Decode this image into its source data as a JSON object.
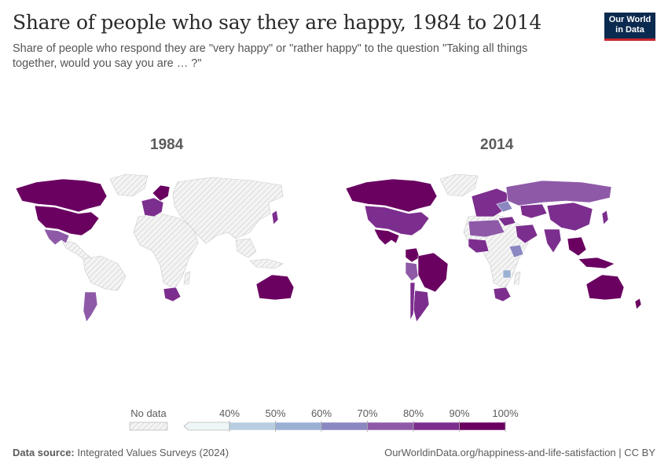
{
  "header": {
    "title": "Share of people who say they are happy, 1984 to 2014",
    "subtitle": "Share of people who respond they are \"very happy\" or \"rather happy\" to the question \"Taking all things together, would you say you are … ?\""
  },
  "logo": {
    "line1": "Our World",
    "line2": "in Data",
    "bg_color": "#0b2a4f",
    "accent_color": "#c8252c"
  },
  "chart_data": {
    "type": "choropleth",
    "title": "Share of people who say they are happy, 1984 to 2014",
    "maps": [
      {
        "year_label": "1984",
        "regions": [
          {
            "name": "Canada",
            "bin": "90-100%"
          },
          {
            "name": "United States",
            "bin": "90-100%"
          },
          {
            "name": "Mexico",
            "bin": "70-80%"
          },
          {
            "name": "Argentina",
            "bin": "70-80%"
          },
          {
            "name": "Western Europe",
            "bin": "80-90%"
          },
          {
            "name": "Nordics",
            "bin": "90-100%"
          },
          {
            "name": "Japan",
            "bin": "80-90%"
          },
          {
            "name": "South Africa",
            "bin": "80-90%"
          },
          {
            "name": "Australia",
            "bin": "90-100%"
          }
        ]
      },
      {
        "year_label": "2014",
        "regions": [
          {
            "name": "Canada",
            "bin": "90-100%"
          },
          {
            "name": "United States",
            "bin": "80-90%"
          },
          {
            "name": "Mexico",
            "bin": "90-100%"
          },
          {
            "name": "Colombia",
            "bin": "90-100%"
          },
          {
            "name": "Brazil",
            "bin": "90-100%"
          },
          {
            "name": "Peru",
            "bin": "70-80%"
          },
          {
            "name": "Argentina",
            "bin": "80-90%"
          },
          {
            "name": "Chile",
            "bin": "80-90%"
          },
          {
            "name": "Europe",
            "bin": "80-90%"
          },
          {
            "name": "Russia",
            "bin": "70-80%"
          },
          {
            "name": "Ukraine",
            "bin": "60-70%"
          },
          {
            "name": "Turkey",
            "bin": "80-90%"
          },
          {
            "name": "North Africa",
            "bin": "70-80%"
          },
          {
            "name": "West Africa",
            "bin": "80-90%"
          },
          {
            "name": "Ethiopia",
            "bin": "60-70%"
          },
          {
            "name": "Zimbabwe",
            "bin": "50-60%"
          },
          {
            "name": "South Africa",
            "bin": "80-90%"
          },
          {
            "name": "Middle East",
            "bin": "80-90%"
          },
          {
            "name": "Kazakhstan",
            "bin": "80-90%"
          },
          {
            "name": "China",
            "bin": "80-90%"
          },
          {
            "name": "India",
            "bin": "80-90%"
          },
          {
            "name": "Japan",
            "bin": "80-90%"
          },
          {
            "name": "Southeast Asia",
            "bin": "90-100%"
          },
          {
            "name": "Australia",
            "bin": "90-100%"
          },
          {
            "name": "New Zealand",
            "bin": "90-100%"
          }
        ]
      }
    ],
    "legend": {
      "no_data_label": "No data",
      "ticks": [
        "40%",
        "50%",
        "60%",
        "70%",
        "80%",
        "90%",
        "100%"
      ],
      "bins": [
        {
          "range": "<40%",
          "color": "#eef6f8"
        },
        {
          "range": "40-50%",
          "color": "#b9cde0"
        },
        {
          "range": "50-60%",
          "color": "#9ab1d3"
        },
        {
          "range": "60-70%",
          "color": "#8a87c1"
        },
        {
          "range": "70-80%",
          "color": "#8e5aa8"
        },
        {
          "range": "80-90%",
          "color": "#7c2e8e"
        },
        {
          "range": "90-100%",
          "color": "#6a0161"
        }
      ],
      "no_data_color": "#e3e3e3"
    }
  },
  "footer": {
    "source_label": "Data source:",
    "source_text": "Integrated Values Surveys (2024)",
    "url_text": "OurWorldinData.org/happiness-and-life-satisfaction | CC BY"
  }
}
